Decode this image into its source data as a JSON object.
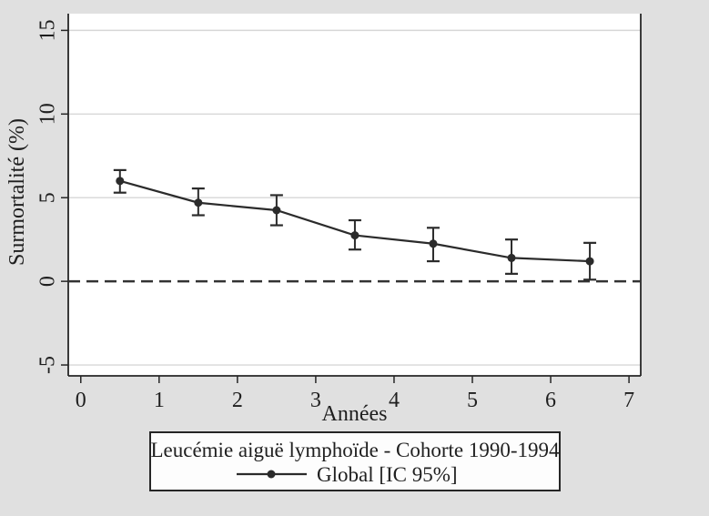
{
  "figure": {
    "kind": "stata-style survival excess mortality plot",
    "background_color": "#e0e0e0",
    "plot_background_color": "#ffffff"
  },
  "chart_data": {
    "type": "line",
    "title": "",
    "xlabel": "Années",
    "ylabel": "Surmortalité (%)",
    "x": [
      0.5,
      1.5,
      2.5,
      3.5,
      4.5,
      5.5,
      6.5
    ],
    "series": [
      {
        "name": "Global [IC 95%]",
        "values": [
          6.0,
          4.7,
          4.25,
          2.75,
          2.25,
          1.4,
          1.2
        ],
        "ci_low": [
          5.3,
          3.95,
          3.35,
          1.9,
          1.2,
          0.45,
          0.1
        ],
        "ci_high": [
          6.65,
          5.55,
          5.15,
          3.65,
          3.2,
          2.5,
          2.3
        ]
      }
    ],
    "xticks": [
      0,
      1,
      2,
      3,
      4,
      5,
      6,
      7
    ],
    "yticks": [
      -5,
      0,
      5,
      10,
      15
    ],
    "xlim": [
      -0.16,
      7.15
    ],
    "ylim": [
      -5.65,
      16.0
    ],
    "ref_line_y": 0,
    "grid": true,
    "legend": {
      "position": "bottom",
      "title": "Leucémie aiguë lymphoïde - Cohorte 1990-1994",
      "entries": [
        "Global [IC 95%]"
      ]
    },
    "colors": {
      "line": "#2b2b2b",
      "marker": "#2b2b2b",
      "axis": "#262626",
      "grid": "#d7d7d7",
      "ref_line": "#333333",
      "text": "#1f1f1f",
      "legend_bg": "#fdfdfd",
      "plot_bg": "#ffffff",
      "background": "#e0e0e0"
    }
  }
}
